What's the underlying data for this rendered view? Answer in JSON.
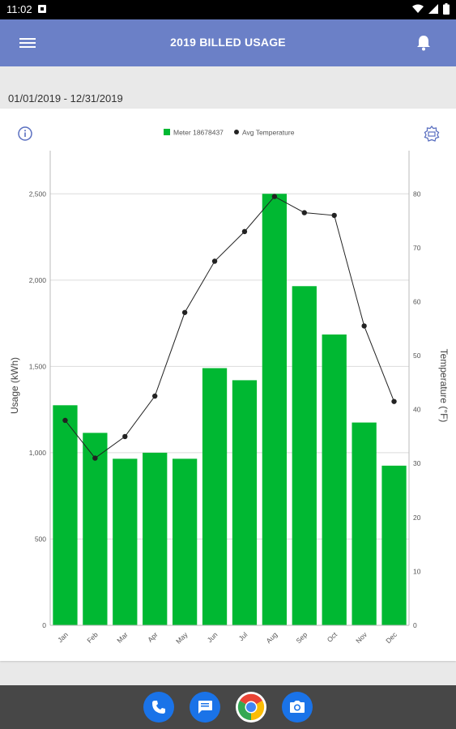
{
  "status_bar": {
    "time": "11:02"
  },
  "app_bar": {
    "title": "2019 BILLED USAGE"
  },
  "date_range": "01/01/2019 - 12/31/2019",
  "legend": {
    "bar_label": "Meter 18678437",
    "line_label": "Avg Temperature"
  },
  "colors": {
    "bar": "#00b832",
    "line": "#222222",
    "app_bar": "#6b80c7",
    "accent": "#5a6fc0"
  },
  "icons": [
    "menu-icon",
    "bell-icon",
    "info-icon",
    "export-icon",
    "phone-icon",
    "messages-icon",
    "chrome-icon",
    "camera-icon"
  ],
  "chart_data": {
    "type": "bar",
    "categories": [
      "Jan",
      "Feb",
      "Mar",
      "Apr",
      "May",
      "Jun",
      "Jul",
      "Aug",
      "Sep",
      "Oct",
      "Nov",
      "Dec"
    ],
    "series": [
      {
        "name": "Meter 18678437",
        "type": "bar",
        "axis": "left",
        "values": [
          1275,
          1115,
          965,
          1000,
          965,
          1490,
          1420,
          2500,
          1965,
          1685,
          1175,
          925
        ]
      },
      {
        "name": "Avg Temperature",
        "type": "line",
        "axis": "right",
        "values": [
          38,
          31,
          35,
          42.5,
          58,
          67.5,
          73,
          79.5,
          76.5,
          76,
          55.5,
          41.5
        ]
      }
    ],
    "ylabel": "Usage (kWh)",
    "y2label": "Temperature (°F)",
    "ylim": [
      0,
      2750
    ],
    "yticks": [
      "0",
      "500",
      "1,000",
      "1,500",
      "2,000",
      "2,500"
    ],
    "yticks_values": [
      0,
      500,
      1000,
      1500,
      2000,
      2500
    ],
    "y2lim": [
      0,
      88
    ],
    "y2ticks": [
      0,
      10,
      20,
      30,
      40,
      50,
      60,
      70,
      80
    ],
    "grid": true,
    "legend_position": "top-center"
  }
}
